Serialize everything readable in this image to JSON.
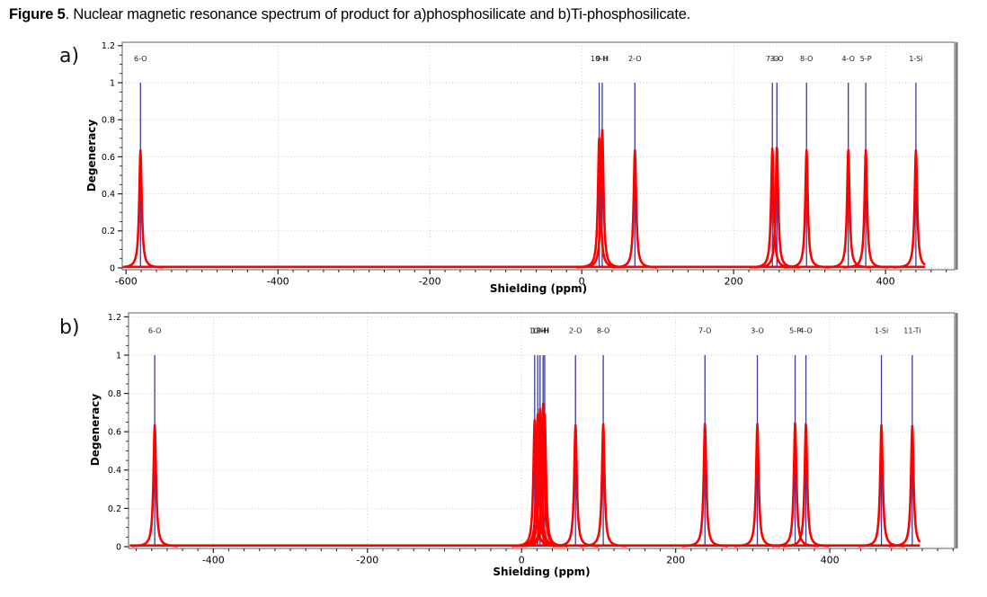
{
  "caption": {
    "figure_label": "Figure 5",
    "rest": ". Nuclear magnetic resonance spectrum of product for a)phosphosilicate and b)Ti-phosphosilicate."
  },
  "colors": {
    "stem": "#3a3aa2",
    "curve": "#ff0000",
    "grid": "#c6c6c6",
    "frame": "#6e6e6e",
    "frame_shadow": "#7d7d7d",
    "text": "#000000"
  },
  "chart_data": [
    {
      "type": "line",
      "subtype": "nmr_stick_spectrum_with_lorentzian_envelope",
      "panel_label": "a)",
      "xlabel": "Shielding (ppm)",
      "ylabel": "Degeneracy",
      "xlim": [
        -605,
        491
      ],
      "ylim": [
        -0.01,
        1.22
      ],
      "xticks": [
        -600,
        -400,
        -200,
        0,
        200,
        400
      ],
      "xtick_labels": [
        "-600",
        "-400",
        "-200",
        "0",
        "200",
        "400"
      ],
      "yticks": [
        0,
        0.2,
        0.4,
        0.6,
        0.8,
        1,
        1.2
      ],
      "ytick_labels": [
        "0",
        "0.2",
        "0.4",
        "0.6",
        "0.8",
        "1",
        "1.2"
      ],
      "minor_x_step": 20,
      "minor_y_step": 0.05,
      "grid": true,
      "legend": "none",
      "stem_height": 1.0,
      "label_y": 1.13,
      "lorentzian_gamma": 2,
      "curve_x_end": 452,
      "peaks": [
        {
          "label": "6-O",
          "x": -581,
          "stem": 1.0,
          "amp": 0.635
        },
        {
          "label": "10-H",
          "x": 23,
          "stem": 1.0,
          "amp": 0.7
        },
        {
          "label": "9-H",
          "x": 27,
          "stem": 1.0,
          "amp": 0.745
        },
        {
          "label": "2-O",
          "x": 70,
          "stem": 1.0,
          "amp": 0.635
        },
        {
          "label": "7-O",
          "x": 251,
          "stem": 1.0,
          "amp": 0.645
        },
        {
          "label": "3-O",
          "x": 257,
          "stem": 1.0,
          "amp": 0.65
        },
        {
          "label": "8-O",
          "x": 296,
          "stem": 1.0,
          "amp": 0.635
        },
        {
          "label": "4-O",
          "x": 351,
          "stem": 1.0,
          "amp": 0.635
        },
        {
          "label": "5-P",
          "x": 374,
          "stem": 1.0,
          "amp": 0.635
        },
        {
          "label": "1-Si",
          "x": 440,
          "stem": 1.0,
          "amp": 0.635
        }
      ]
    },
    {
      "type": "line",
      "subtype": "nmr_stick_spectrum_with_lorentzian_envelope",
      "panel_label": "b)",
      "xlabel": "Shielding (ppm)",
      "ylabel": "Degeneracy",
      "xlim": [
        -510,
        562
      ],
      "ylim": [
        -0.01,
        1.22
      ],
      "xticks": [
        -400,
        -200,
        0,
        200,
        400
      ],
      "xtick_labels": [
        "-400",
        "-200",
        "0",
        "200",
        "400"
      ],
      "yticks": [
        0,
        0.2,
        0.4,
        0.6,
        0.8,
        1,
        1.2
      ],
      "ytick_labels": [
        "0",
        "0.2",
        "0.4",
        "0.6",
        "0.8",
        "1",
        "1.2"
      ],
      "minor_x_step": 20,
      "minor_y_step": 0.05,
      "grid": true,
      "legend": "none",
      "stem_height": 1.0,
      "label_y": 1.13,
      "lorentzian_gamma": 2,
      "curve_x_end": 517,
      "peaks": [
        {
          "label": "6-O",
          "x": -476,
          "stem": 1.0,
          "amp": 0.635
        },
        {
          "label": "",
          "x": 17,
          "stem": 1.0,
          "amp": 0.66
        },
        {
          "label": "10-H",
          "x": 21,
          "stem": 1.0,
          "amp": 0.69
        },
        {
          "label": "12-H",
          "x": 24,
          "stem": 1.0,
          "amp": 0.72
        },
        {
          "label": "9-H",
          "x": 28,
          "stem": 1.0,
          "amp": 0.745
        },
        {
          "label": "",
          "x": 30,
          "stem": 1.0,
          "amp": 0.69
        },
        {
          "label": "2-O",
          "x": 70,
          "stem": 1.0,
          "amp": 0.635
        },
        {
          "label": "8-O",
          "x": 106,
          "stem": 1.0,
          "amp": 0.64
        },
        {
          "label": "7-O",
          "x": 238,
          "stem": 1.0,
          "amp": 0.64
        },
        {
          "label": "3-O",
          "x": 306,
          "stem": 1.0,
          "amp": 0.64
        },
        {
          "label": "5-P",
          "x": 355,
          "stem": 1.0,
          "amp": 0.645
        },
        {
          "label": "4-O",
          "x": 369,
          "stem": 1.0,
          "amp": 0.64
        },
        {
          "label": "1-Si",
          "x": 467,
          "stem": 1.0,
          "amp": 0.635
        },
        {
          "label": "11-Ti",
          "x": 507,
          "stem": 1.0,
          "amp": 0.63
        }
      ]
    }
  ]
}
